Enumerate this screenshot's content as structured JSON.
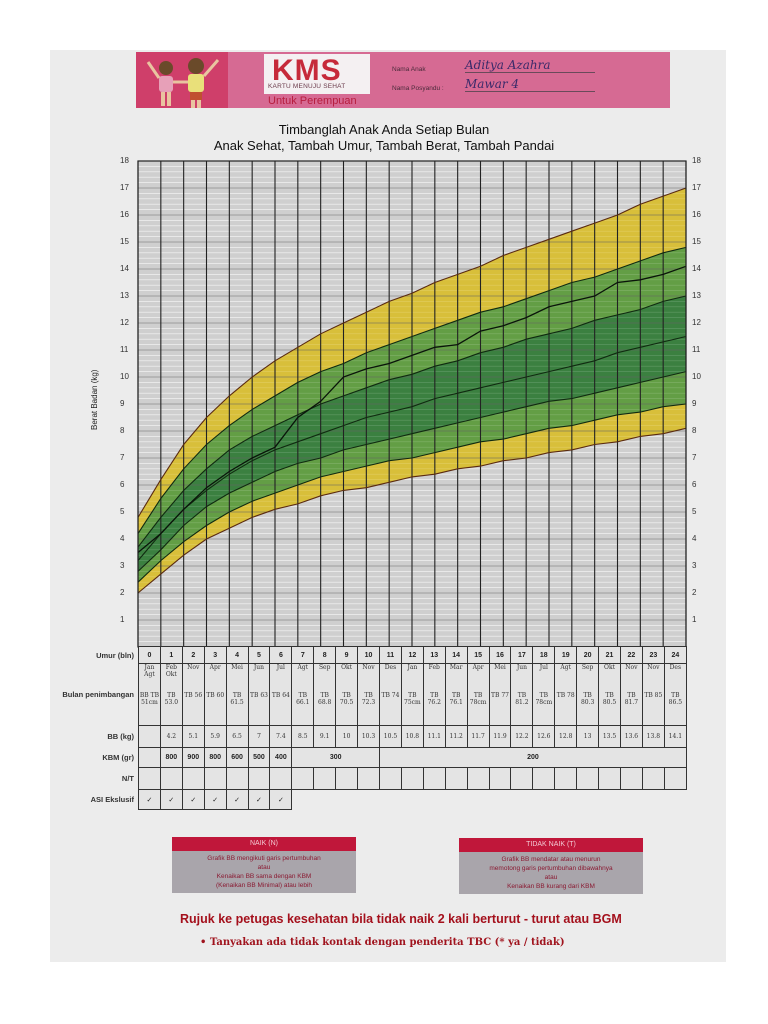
{
  "header": {
    "logo": "KMS",
    "logo_subtitle": "KARTU MENUJU SEHAT",
    "variant": "Untuk Perempuan",
    "fields": [
      {
        "label": "Nama Anak",
        "value": "Aditya Azahra"
      },
      {
        "label": "Nama Posyandu :",
        "value": "Mawar 4"
      }
    ]
  },
  "titles": {
    "line1": "Timbanglah Anak Anda Setiap Bulan",
    "line2": "Anak Sehat, Tambah Umur, Tambah Berat, Tambah Pandai"
  },
  "colors": {
    "header_pink": "#d66a93",
    "band_yellow": "#d9be2e",
    "band_green_light": "#5a9a3a",
    "band_green_dark": "#2f7a34",
    "grid_bg": "#cfcfcf",
    "box_header_red": "#c0173a"
  },
  "chart_data": {
    "type": "line",
    "title": "Timbanglah Anak Anda Setiap Bulan",
    "xlabel": "Umur (bln)",
    "ylabel": "Berat Badan (kg)",
    "ylim": [
      0,
      18
    ],
    "xlim": [
      0,
      24
    ],
    "yticks": [
      1,
      2,
      3,
      4,
      5,
      6,
      7,
      8,
      9,
      10,
      11,
      12,
      13,
      14,
      15,
      16,
      17,
      18
    ],
    "x": [
      0,
      1,
      2,
      3,
      4,
      5,
      6,
      7,
      8,
      9,
      10,
      11,
      12,
      13,
      14,
      15,
      16,
      17,
      18,
      19,
      20,
      21,
      22,
      23,
      24
    ],
    "reference_curves": [
      {
        "name": "-3 SD (bottom yellow)",
        "values": [
          2.0,
          2.7,
          3.4,
          4.0,
          4.4,
          4.8,
          5.1,
          5.3,
          5.6,
          5.8,
          5.9,
          6.1,
          6.3,
          6.4,
          6.6,
          6.7,
          6.9,
          7.0,
          7.2,
          7.3,
          7.5,
          7.6,
          7.8,
          7.9,
          8.1
        ]
      },
      {
        "name": "-2 SD",
        "values": [
          2.4,
          3.2,
          3.9,
          4.5,
          5.0,
          5.4,
          5.7,
          6.0,
          6.3,
          6.5,
          6.7,
          6.9,
          7.0,
          7.2,
          7.4,
          7.6,
          7.7,
          7.9,
          8.1,
          8.2,
          8.4,
          8.6,
          8.7,
          8.9,
          9.0
        ]
      },
      {
        "name": "-1 SD",
        "values": [
          2.8,
          3.6,
          4.5,
          5.2,
          5.7,
          6.1,
          6.5,
          6.8,
          7.0,
          7.3,
          7.5,
          7.7,
          7.9,
          8.1,
          8.3,
          8.5,
          8.7,
          8.9,
          9.1,
          9.2,
          9.4,
          9.6,
          9.8,
          10.0,
          10.2
        ]
      },
      {
        "name": "Median",
        "values": [
          3.2,
          4.2,
          5.1,
          5.8,
          6.4,
          6.9,
          7.3,
          7.6,
          7.9,
          8.2,
          8.5,
          8.7,
          8.9,
          9.2,
          9.4,
          9.6,
          9.8,
          10.0,
          10.2,
          10.4,
          10.6,
          10.9,
          11.1,
          11.3,
          11.5
        ]
      },
      {
        "name": "+1 SD",
        "values": [
          3.7,
          4.8,
          5.8,
          6.6,
          7.3,
          7.8,
          8.2,
          8.6,
          9.0,
          9.3,
          9.6,
          9.9,
          10.1,
          10.4,
          10.6,
          10.9,
          11.1,
          11.4,
          11.6,
          11.8,
          12.1,
          12.3,
          12.5,
          12.8,
          13.0
        ]
      },
      {
        "name": "+2 SD",
        "values": [
          4.2,
          5.5,
          6.6,
          7.5,
          8.2,
          8.8,
          9.3,
          9.8,
          10.2,
          10.5,
          10.9,
          11.2,
          11.5,
          11.8,
          12.1,
          12.4,
          12.6,
          12.9,
          13.2,
          13.5,
          13.7,
          14.0,
          14.3,
          14.6,
          14.8
        ]
      },
      {
        "name": "+3 SD (top yellow)",
        "values": [
          4.8,
          6.2,
          7.5,
          8.5,
          9.3,
          10.0,
          10.6,
          11.1,
          11.6,
          12.0,
          12.4,
          12.8,
          13.1,
          13.5,
          13.8,
          14.1,
          14.5,
          14.8,
          15.1,
          15.4,
          15.7,
          16.0,
          16.4,
          16.7,
          17.0
        ]
      }
    ],
    "series": [
      {
        "name": "Berat anak (BB kg)",
        "values": [
          3.5,
          4.2,
          5.1,
          5.9,
          6.5,
          7.0,
          7.4,
          8.5,
          9.1,
          10.0,
          10.3,
          10.5,
          10.8,
          11.1,
          11.2,
          11.7,
          11.9,
          12.2,
          12.6,
          12.8,
          13.0,
          13.5,
          13.6,
          13.8,
          14.1
        ]
      }
    ],
    "grid": true,
    "legend": "none"
  },
  "table": {
    "row_labels": {
      "age": "Umur (bln)",
      "month": "Bulan penimbangan",
      "bb": "BB (kg)",
      "kbm": "KBM (gr)",
      "nt": "N/T",
      "asi": "ASI Ekslusif"
    },
    "ages": [
      "0",
      "1",
      "2",
      "3",
      "4",
      "5",
      "6",
      "7",
      "8",
      "9",
      "10",
      "11",
      "12",
      "13",
      "14",
      "15",
      "16",
      "17",
      "18",
      "19",
      "20",
      "21",
      "22",
      "23",
      "24"
    ],
    "months": [
      "Jan Agt",
      "Feb Okt",
      "Nov",
      "Apr",
      "Mei",
      "Jun",
      "Jul",
      "Agt",
      "Sep",
      "Okt",
      "Nov",
      "Des",
      "Jan",
      "Feb",
      "Mar",
      "Apr",
      "Mei",
      "Jun",
      "Jul",
      "Agt",
      "Sep",
      "Okt",
      "Nov",
      "Nov",
      "Des"
    ],
    "tb": [
      "BB TB 51cm",
      "TB 53.0",
      "TB 56",
      "TB 60",
      "TB 61.5",
      "TB 63",
      "TB 64",
      "TB 66.1",
      "TB 68.8",
      "TB 70.5",
      "TB 72.3",
      "TB 74",
      "TB 75cm",
      "TB 76.2",
      "TB 76.1",
      "TB 78cm",
      "TB 77",
      "TB 81.2",
      "TB 78cm",
      "TB 78",
      "TB 80.3",
      "TB 80.5",
      "TB 81.7",
      "TB 85",
      "TB 86.5"
    ],
    "bb": [
      "",
      "4.2",
      "5.1",
      "5.9",
      "6.5",
      "7",
      "7.4",
      "8.5",
      "9.1",
      "10",
      "10.3",
      "10.5",
      "10.8",
      "11.1",
      "11.2",
      "11.7",
      "11.9",
      "12.2",
      "12.6",
      "12.8",
      "13",
      "13.5",
      "13.6",
      "13.8",
      "14.1"
    ],
    "kbm": [
      "",
      "800",
      "900",
      "800",
      "600",
      "500",
      "400"
    ],
    "kbm_span_7_10": "300",
    "kbm_span_11_24": "200",
    "asi": [
      "✓",
      "✓",
      "✓",
      "✓",
      "✓",
      "✓",
      "✓"
    ]
  },
  "legend_boxes": [
    {
      "title": "NAIK (N)",
      "lines": [
        "Grafik BB mengikuti garis pertumbuhan",
        "atau",
        "Kenaikan BB sama dengan KBM",
        "(Kenaikan BB Minimal) atau lebih"
      ]
    },
    {
      "title": "TIDAK NAIK (T)",
      "lines": [
        "Grafik BB mendatar atau menurun",
        "memotong garis pertumbuhan dibawahnya",
        "atau",
        "Kenaikan BB kurang dari KBM"
      ]
    }
  ],
  "footer": {
    "rujuk": "Rujuk ke petugas kesehatan bila tidak naik 2 kali berturut - turut atau BGM",
    "tanya": "•  Tanyakan ada tidak kontak dengan penderita TBC (* ya / tidak)"
  }
}
